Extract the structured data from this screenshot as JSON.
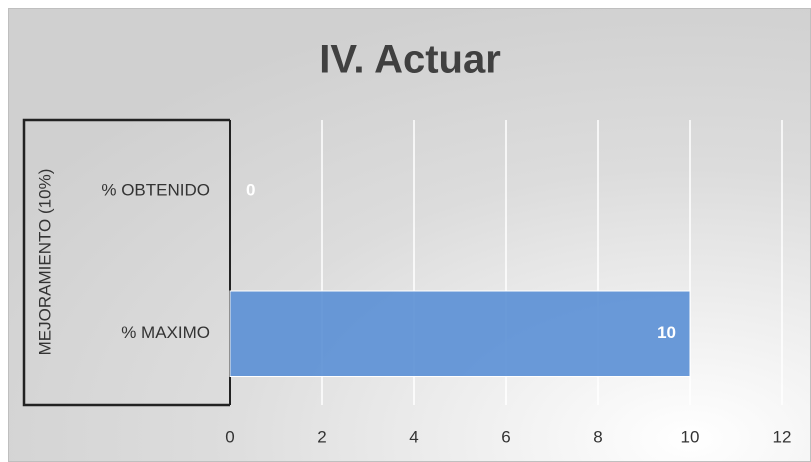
{
  "chart_data": {
    "type": "bar",
    "orientation": "horizontal",
    "title": "IV. Actuar",
    "group_label": "MEJORAMIENTO (10%)",
    "categories": [
      "% OBTENIDO",
      "% MAXIMO"
    ],
    "values": [
      0,
      10
    ],
    "color": "#5a8fd5",
    "xlim": [
      0,
      12
    ],
    "xticks": [
      0,
      2,
      4,
      6,
      8,
      10,
      12
    ],
    "grid": true
  }
}
